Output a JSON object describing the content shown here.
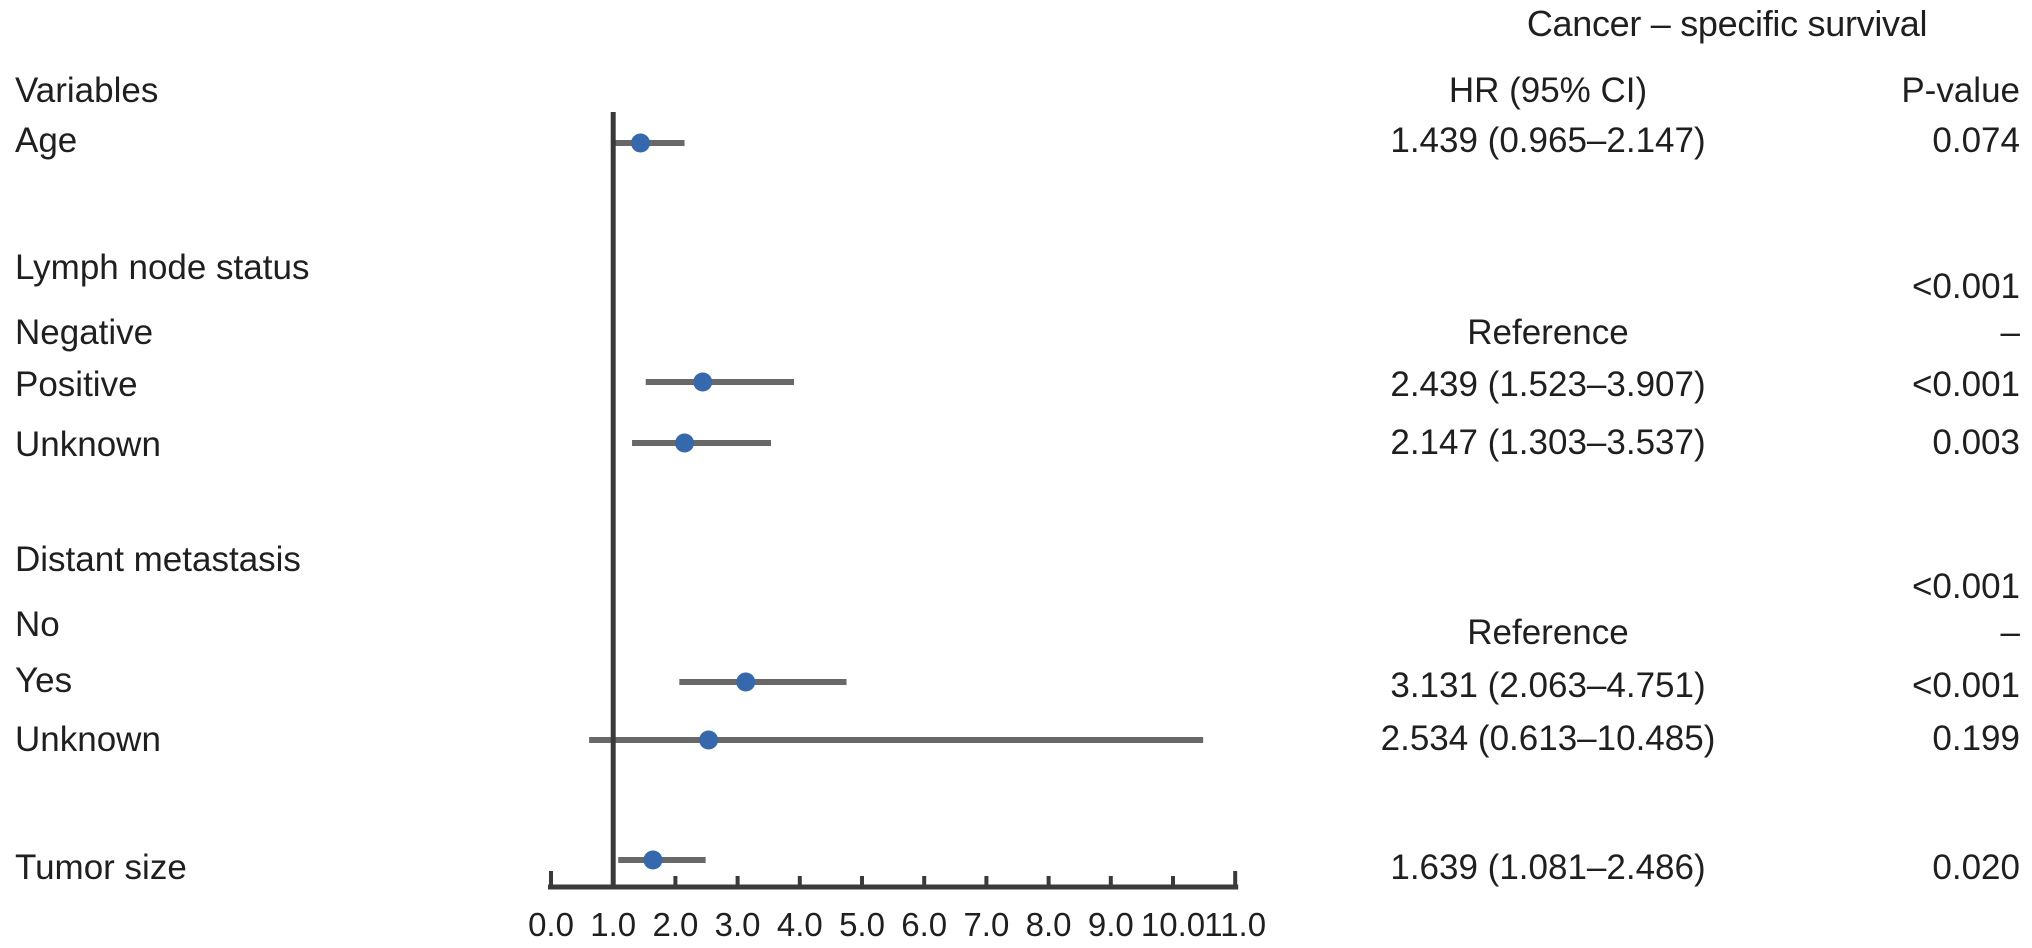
{
  "title": "Cancer – specific survival",
  "headers": {
    "variables": "Variables",
    "hr": "HR (95% CI)",
    "p": "P-value"
  },
  "colors": {
    "dot": "#3568ad",
    "axis_line": "#3a3a3a",
    "ci_line": "#686868",
    "text": "#1f1f1f"
  },
  "chart_data": {
    "type": "scatter",
    "variant": "forest-plot",
    "title": "Cancer – specific survival",
    "xlim": [
      0.0,
      11.0
    ],
    "x_tick_labels": [
      "0.0",
      "1.0",
      "2.0",
      "3.0",
      "4.0",
      "5.0",
      "6.0",
      "7.0",
      "8.0",
      "9.0",
      "10.0",
      "11.0"
    ],
    "reference_line_x": 1.0,
    "grid": false,
    "legend": false,
    "rows": [
      {
        "label": "Age",
        "hr_ci": "1.439 (0.965–2.147)",
        "p": "0.074",
        "hr": 1.439,
        "ci_low": 0.965,
        "ci_high": 2.147
      },
      {
        "label": "Lymph node status",
        "hr_ci": "",
        "p": "<0.001",
        "hr": null,
        "ci_low": null,
        "ci_high": null
      },
      {
        "label": "Negative",
        "hr_ci": "Reference",
        "p": "–",
        "hr": null,
        "ci_low": null,
        "ci_high": null
      },
      {
        "label": "Positive",
        "hr_ci": "2.439 (1.523–3.907)",
        "p": "<0.001",
        "hr": 2.439,
        "ci_low": 1.523,
        "ci_high": 3.907
      },
      {
        "label": "Unknown",
        "hr_ci": "2.147 (1.303–3.537)",
        "p": "0.003",
        "hr": 2.147,
        "ci_low": 1.303,
        "ci_high": 3.537
      },
      {
        "label": "Distant metastasis",
        "hr_ci": "",
        "p": "<0.001",
        "hr": null,
        "ci_low": null,
        "ci_high": null
      },
      {
        "label": "No",
        "hr_ci": "Reference",
        "p": "–",
        "hr": null,
        "ci_low": null,
        "ci_high": null
      },
      {
        "label": "Yes",
        "hr_ci": "3.131 (2.063–4.751)",
        "p": "<0.001",
        "hr": 3.131,
        "ci_low": 2.063,
        "ci_high": 4.751
      },
      {
        "label": "Unknown",
        "hr_ci": "2.534 (0.613–10.485)",
        "p": "0.199",
        "hr": 2.534,
        "ci_low": 0.613,
        "ci_high": 10.485
      },
      {
        "label": "Tumor size",
        "hr_ci": "1.639 (1.081–2.486)",
        "p": "0.020",
        "hr": 1.639,
        "ci_low": 1.081,
        "ci_high": 2.486
      }
    ]
  }
}
